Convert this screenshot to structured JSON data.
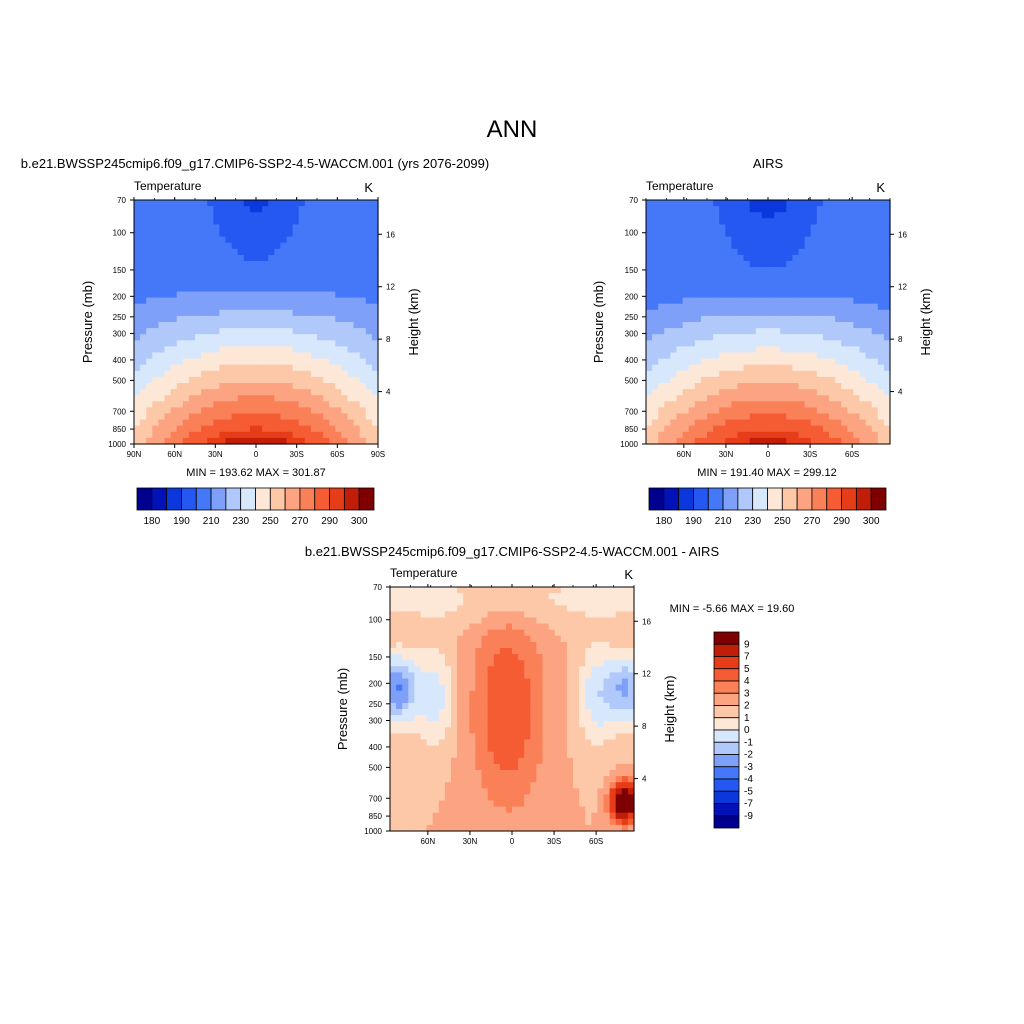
{
  "page": {
    "title": "ANN"
  },
  "colors": {
    "abs_levels": [
      "#000090",
      "#0012b8",
      "#0a38dc",
      "#2458f0",
      "#4478f8",
      "#7ea0f8",
      "#b0c8fa",
      "#d8e8fc",
      "#fde8d8",
      "#fcc8a8",
      "#fca482",
      "#fa8058",
      "#f65c34",
      "#e63c18",
      "#c01e08",
      "#7e0000"
    ],
    "diff_levels": [
      "#000090",
      "#0012b8",
      "#0a38dc",
      "#2458f0",
      "#4478f8",
      "#7ea0f8",
      "#b0c8fa",
      "#d8e8fc",
      "#fde8d8",
      "#fcc8a8",
      "#fca482",
      "#fa8058",
      "#f65c34",
      "#e63c18",
      "#c01e08",
      "#7e0000"
    ]
  },
  "chart_data": [
    {
      "type": "contour",
      "title": "b.e21.BWSSP245cmip6.f09_g17.CMIP6-SSP2-4.5-WACCM.001 (yrs 2076-2099)",
      "left_label": "Temperature",
      "right_label": "K",
      "ylabel": "Pressure (mb)",
      "y2label": "Height (km)",
      "x_ticks": [
        "90N",
        "60N",
        "30N",
        "0",
        "30S",
        "60S",
        "90S"
      ],
      "y_ticks": [
        "70",
        "100",
        "150",
        "200",
        "250",
        "300",
        "400",
        "500",
        "700",
        "850",
        "1000"
      ],
      "y2_ticks": [
        "16",
        "12",
        "8",
        "4"
      ],
      "stats": "MIN = 193.62  MAX = 301.87",
      "colorbar_labels": [
        "180",
        "190",
        "210",
        "230",
        "250",
        "270",
        "290",
        "300"
      ],
      "min": 193.62,
      "max": 301.87,
      "levels": [
        180,
        185,
        190,
        200,
        210,
        220,
        230,
        240,
        250,
        260,
        270,
        280,
        290,
        295,
        300
      ]
    },
    {
      "type": "contour",
      "title": "AIRS",
      "left_label": "Temperature",
      "right_label": "K",
      "ylabel": "Pressure (mb)",
      "y2label": "Height (km)",
      "x_ticks": [
        "60N",
        "30N",
        "0",
        "30S",
        "60S"
      ],
      "y_ticks": [
        "70",
        "100",
        "150",
        "200",
        "250",
        "300",
        "400",
        "500",
        "700",
        "850",
        "1000"
      ],
      "y2_ticks": [
        "16",
        "12",
        "8",
        "4"
      ],
      "stats": "MIN = 191.40  MAX = 299.12",
      "colorbar_labels": [
        "180",
        "190",
        "210",
        "230",
        "250",
        "270",
        "290",
        "300"
      ],
      "min": 191.4,
      "max": 299.12,
      "levels": [
        180,
        185,
        190,
        200,
        210,
        220,
        230,
        240,
        250,
        260,
        270,
        280,
        290,
        295,
        300
      ]
    },
    {
      "type": "contour",
      "title": "b.e21.BWSSP245cmip6.f09_g17.CMIP6-SSP2-4.5-WACCM.001 - AIRS",
      "left_label": "Temperature",
      "right_label": "K",
      "ylabel": "Pressure (mb)",
      "y2label": "Height (km)",
      "x_ticks": [
        "60N",
        "30N",
        "0",
        "30S",
        "60S"
      ],
      "y_ticks": [
        "70",
        "100",
        "150",
        "200",
        "250",
        "300",
        "400",
        "500",
        "700",
        "850",
        "1000"
      ],
      "y2_ticks": [
        "16",
        "12",
        "8",
        "4"
      ],
      "stats": "MIN =  -5.66  MAX =  19.60",
      "colorbar_labels": [
        "9",
        "7",
        "5",
        "4",
        "3",
        "2",
        "1",
        "0",
        "-1",
        "-2",
        "-3",
        "-4",
        "-5",
        "-7",
        "-9"
      ],
      "min": -5.66,
      "max": 19.6,
      "levels": [
        -9,
        -7,
        -5,
        -4,
        -3,
        -2,
        -1,
        0,
        1,
        2,
        3,
        4,
        5,
        7,
        9
      ]
    }
  ]
}
